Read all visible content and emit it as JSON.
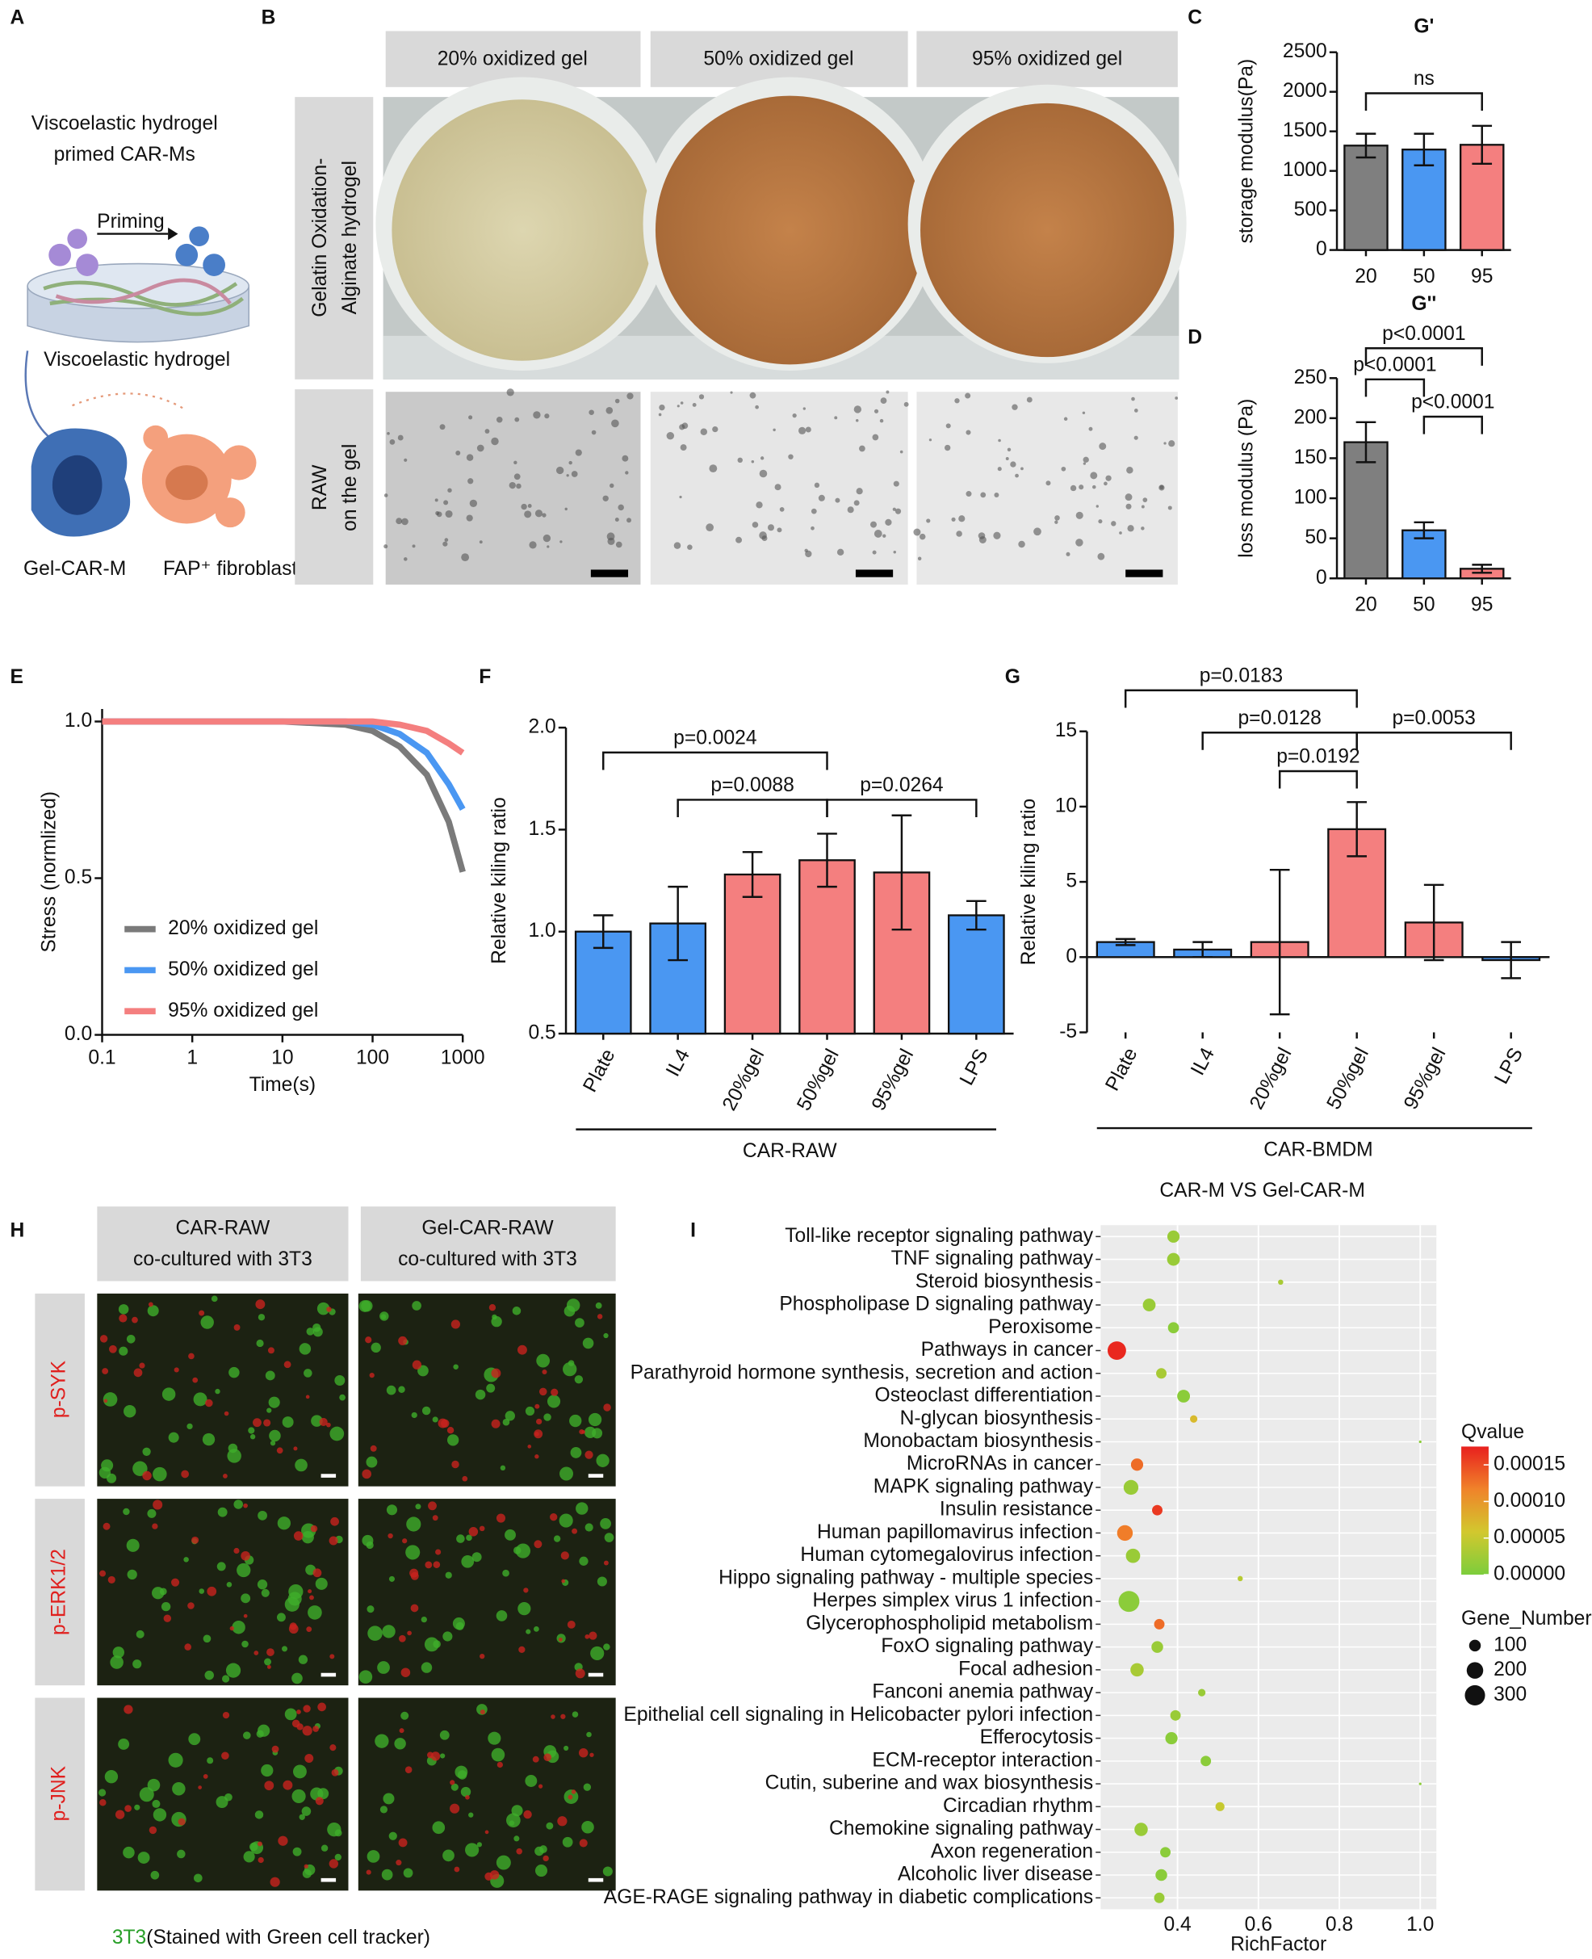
{
  "panel_labels": [
    "A",
    "B",
    "C",
    "D",
    "E",
    "F",
    "G",
    "H",
    "I"
  ],
  "panel_a": {
    "title_lines": [
      "Viscoelastic hydrogel",
      "primed CAR-Ms"
    ],
    "priming": "Priming",
    "hydrogel": "Viscoelastic hydrogel",
    "car_m": "Gel-CAR-M",
    "fibroblast": "FAP⁺ fibroblast"
  },
  "panel_b": {
    "columns": [
      "20% oxidized gel",
      "50% oxidized gel",
      "95% oxidized gel"
    ],
    "rows": [
      [
        "Gelatin Oxidation-",
        "Alginate hydrogel"
      ],
      [
        "RAW",
        "on the gel"
      ]
    ]
  },
  "panel_h": {
    "columns": [
      [
        "CAR-RAW",
        "co-cultured with 3T3"
      ],
      [
        "Gel-CAR-RAW",
        "co-cultured with 3T3"
      ]
    ],
    "rows": [
      "p-SYK",
      "p-ERK1/2",
      "p-JNK"
    ],
    "caption_green": "3T3",
    "caption_rest": "(Stained with Green cell tracker)"
  },
  "chart_data": [
    {
      "type": "bar",
      "title": "G'",
      "ylabel": "storage modulus(Pa)",
      "categories": [
        "20",
        "50",
        "95"
      ],
      "values": [
        1320,
        1270,
        1330
      ],
      "errors": [
        150,
        200,
        240
      ],
      "colors": [
        "#7f7f7f",
        "#4a97f2",
        "#f47f7f"
      ],
      "ylim": [
        0,
        2500
      ],
      "yticks": [
        0,
        500,
        1000,
        1500,
        2000,
        2500
      ],
      "annotations": [
        "ns"
      ]
    },
    {
      "type": "bar",
      "title": "G''",
      "ylabel": "loss modulus (Pa)",
      "categories": [
        "20",
        "50",
        "95"
      ],
      "values": [
        170,
        60,
        12
      ],
      "errors": [
        25,
        10,
        5
      ],
      "colors": [
        "#7f7f7f",
        "#4a97f2",
        "#f47f7f"
      ],
      "ylim": [
        0,
        250
      ],
      "yticks": [
        0,
        50,
        100,
        150,
        200,
        250
      ],
      "annotations": [
        "p<0.0001",
        "p<0.0001",
        "p<0.0001"
      ]
    },
    {
      "type": "line",
      "xlabel": "Time(s)",
      "ylabel": "Stress (normlized)",
      "xscale": "log",
      "x": [
        0.1,
        1,
        10,
        50,
        100,
        200,
        400,
        700,
        1000
      ],
      "series": [
        {
          "name": "20% oxidized gel",
          "color": "#7a7a7a",
          "values": [
            1,
            1,
            1,
            0.99,
            0.97,
            0.92,
            0.83,
            0.68,
            0.52
          ]
        },
        {
          "name": "50% oxidized gel",
          "color": "#4a97f2",
          "values": [
            1,
            1,
            1,
            1,
            0.99,
            0.96,
            0.9,
            0.8,
            0.72
          ]
        },
        {
          "name": "95% oxidized gel",
          "color": "#f47f7f",
          "values": [
            1,
            1,
            1,
            1,
            1,
            0.99,
            0.97,
            0.93,
            0.9
          ]
        }
      ],
      "xlim": [
        0.1,
        1000
      ],
      "xticks": [
        0.1,
        1,
        10,
        100,
        1000
      ],
      "ylim": [
        0,
        1.04
      ],
      "yticks": [
        {
          "value": 0,
          "label": "0.0"
        },
        0.5,
        {
          "value": 1,
          "label": "1.0"
        }
      ]
    },
    {
      "type": "bar",
      "ylabel": "Relative kiling ratio",
      "categories": [
        "Plate",
        "IL4",
        "20%gel",
        "50%gel",
        "95%gel",
        "LPS"
      ],
      "values": [
        1.0,
        1.04,
        1.28,
        1.35,
        1.29,
        1.08
      ],
      "errors": [
        0.08,
        0.18,
        0.11,
        0.13,
        0.28,
        0.07
      ],
      "colors": [
        "#4a97f2",
        "#4a97f2",
        "#f47f7f",
        "#f47f7f",
        "#f47f7f",
        "#4a97f2"
      ],
      "ylim": [
        0.5,
        2.0
      ],
      "yticks": [
        0.5,
        {
          "value": 1,
          "label": "1.0"
        },
        1.5,
        {
          "value": 2,
          "label": "2.0"
        }
      ],
      "annotations": [
        "p=0.0024",
        "p=0.0088",
        "p=0.0264"
      ],
      "group_label": "CAR-RAW"
    },
    {
      "type": "bar",
      "ylabel": "Relative kiling ratio",
      "categories": [
        "Plate",
        "IL4",
        "20%gel",
        "50%gel",
        "95%gel",
        "LPS"
      ],
      "values": [
        1.0,
        0.5,
        1.0,
        8.5,
        2.3,
        -0.2
      ],
      "errors": [
        0.2,
        0.5,
        4.8,
        1.8,
        2.5,
        1.2
      ],
      "colors": [
        "#4a97f2",
        "#4a97f2",
        "#f47f7f",
        "#f47f7f",
        "#f47f7f",
        "#4a97f2"
      ],
      "ylim": [
        -5,
        15
      ],
      "yticks": [
        -5,
        0,
        5,
        10,
        15
      ],
      "annotations": [
        "p=0.0183",
        "p=0.0128",
        "p=0.0053",
        "p=0.0192"
      ],
      "group_label": "CAR-BMDM"
    },
    {
      "type": "bubble",
      "title": "CAR-M VS Gel-CAR-M",
      "xlabel": "RichFactor",
      "categories": [
        "Toll-like receptor signaling pathway",
        "TNF signaling pathway",
        "Steroid biosynthesis",
        "Phospholipase D signaling pathway",
        "Peroxisome",
        "Pathways in cancer",
        "Parathyroid hormone synthesis, secretion and action",
        "Osteoclast differentiation",
        "N-glycan biosynthesis",
        "Monobactam biosynthesis",
        "MicroRNAs in cancer",
        "MAPK signaling pathway",
        "Insulin resistance",
        "Human papillomavirus infection",
        "Human cytomegalovirus infection",
        "Hippo signaling pathway - multiple species",
        "Herpes simplex virus 1 infection",
        "Glycerophospholipid metabolism",
        "FoxO signaling pathway",
        "Focal adhesion",
        "Fanconi anemia pathway",
        "Epithelial cell signaling in Helicobacter pylori infection",
        "Efferocytosis",
        "ECM-receptor interaction",
        "Cutin, suberine and wax biosynthesis",
        "Circadian rhythm",
        "Chemokine signaling pathway",
        "Axon regeneration",
        "Alcoholic liver disease",
        "AGE-RAGE signaling pathway in diabetic complications"
      ],
      "x": [
        0.39,
        0.39,
        0.655,
        0.33,
        0.39,
        0.25,
        0.36,
        0.415,
        0.44,
        1.0,
        0.3,
        0.285,
        0.35,
        0.27,
        0.29,
        0.555,
        0.28,
        0.355,
        0.35,
        0.3,
        0.46,
        0.395,
        0.385,
        0.47,
        1.0,
        0.505,
        0.31,
        0.37,
        0.36,
        0.355
      ],
      "sizes": [
        110,
        120,
        20,
        120,
        90,
        250,
        80,
        120,
        40,
        5,
        110,
        160,
        80,
        180,
        150,
        20,
        320,
        80,
        100,
        130,
        40,
        80,
        110,
        80,
        5,
        60,
        130,
        80,
        100,
        80
      ],
      "qvalues": [
        2e-05,
        2e-05,
        3e-05,
        2e-05,
        1e-05,
        0.00017,
        3e-05,
        1e-05,
        7e-05,
        1e-05,
        0.00013,
        2e-05,
        0.00016,
        0.00012,
        2e-05,
        4e-05,
        1e-05,
        0.00013,
        2e-05,
        3e-05,
        2e-05,
        2e-05,
        1e-05,
        1e-05,
        1e-05,
        5e-05,
        2e-05,
        1e-05,
        1e-05,
        2e-05
      ],
      "xlim": [
        0.21,
        1.04
      ],
      "xticks": [
        0.4,
        0.6,
        0.8,
        {
          "value": 1,
          "label": "1.0"
        }
      ],
      "color_title": "Qvalue",
      "colorscale": [
        "#7ccd3c",
        "#d2c82e",
        "#f0832a",
        "#e8201e"
      ],
      "colorlim": [
        0,
        0.000175
      ],
      "color_ticks": [
        0.00015,
        {
          "value": 0.0001,
          "label": "0.00010"
        },
        5e-05,
        {
          "value": 0,
          "label": "0.00000"
        }
      ],
      "size_title": "Gene_Number",
      "size_legend": [
        100,
        200,
        300
      ],
      "grid": true
    }
  ]
}
